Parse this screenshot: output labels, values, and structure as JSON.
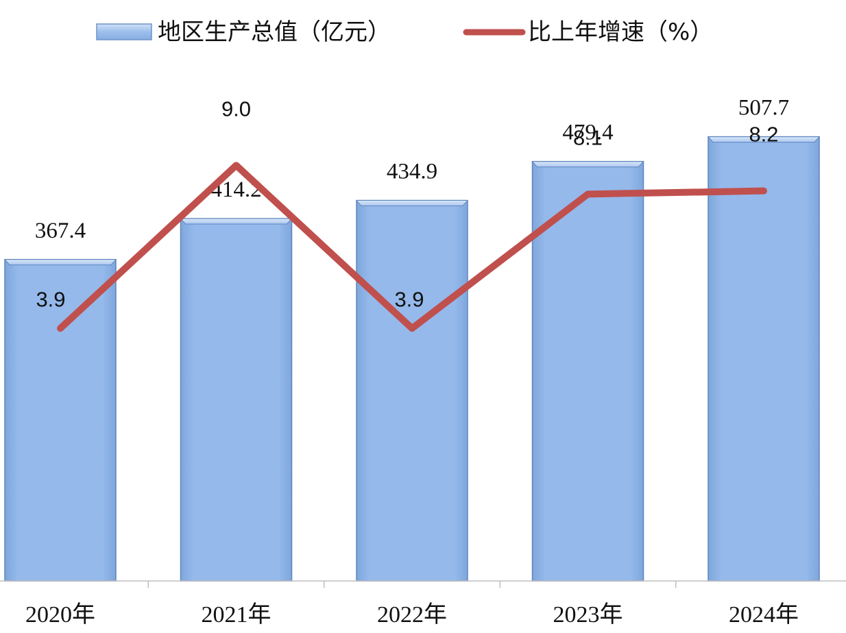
{
  "chart_data": {
    "type": "bar",
    "categories": [
      "2020年",
      "2021年",
      "2022年",
      "2023年",
      "2024年"
    ],
    "series": [
      {
        "name": "地区生产总值（亿元）",
        "type": "bar",
        "axis": "left",
        "values": [
          367.4,
          414.2,
          434.9,
          479.4,
          507.7
        ],
        "labels": [
          "367.4",
          "414.2",
          "434.9",
          "479.4",
          "507.7"
        ]
      },
      {
        "name": "比上年增速（%）",
        "type": "line",
        "axis": "right",
        "values": [
          3.9,
          9.0,
          3.9,
          8.1,
          8.2
        ],
        "labels": [
          "3.9",
          "9.0",
          "3.9",
          "8.1",
          "8.2"
        ]
      }
    ],
    "ylim": [
      0,
      570
    ],
    "y2lim": [
      -4,
      11.6
    ],
    "legend_position": "top",
    "grid": false,
    "colors": {
      "bar_light": "#b3cef2",
      "bar_main": "#95b9eb",
      "bar_dark": "#7fa7dc",
      "bar_edge": "#5e86bd",
      "line": "#c0504d",
      "axis": "#bfbfbf"
    }
  }
}
